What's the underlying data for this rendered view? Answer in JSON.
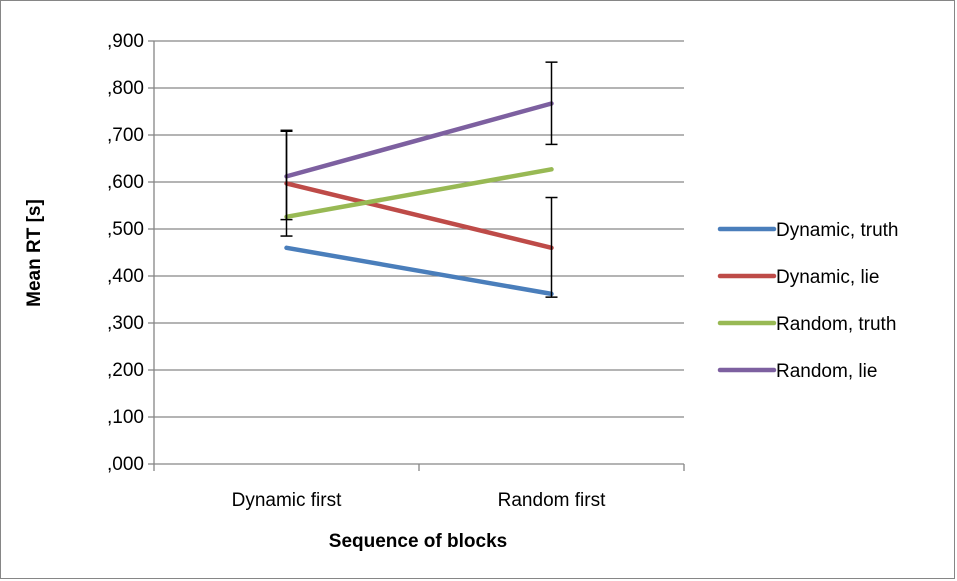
{
  "chart_data": {
    "type": "line",
    "title": "",
    "xlabel": "Sequence of blocks",
    "ylabel": "Mean RT [s]",
    "categories": [
      "Dynamic first",
      "Random first"
    ],
    "ylim": [
      0,
      0.9
    ],
    "yticks": [
      0,
      0.1,
      0.2,
      0.3,
      0.4,
      0.5,
      0.6,
      0.7,
      0.8,
      0.9
    ],
    "ytick_labels": [
      ",000",
      ",100",
      ",200",
      ",300",
      ",400",
      ",500",
      ",600",
      ",700",
      ",800",
      ",900"
    ],
    "grid": true,
    "legend_position": "right",
    "series": [
      {
        "name": "Dynamic, truth",
        "values": [
          0.46,
          0.362
        ],
        "color": "#4A7EBB"
      },
      {
        "name": "Dynamic, lie",
        "values": [
          0.597,
          0.46
        ],
        "color": "#BE4B48"
      },
      {
        "name": "Random, truth",
        "values": [
          0.526,
          0.627
        ],
        "color": "#98B954"
      },
      {
        "name": "Random, lie",
        "values": [
          0.612,
          0.767
        ],
        "color": "#7D60A0"
      }
    ],
    "error_bars": [
      {
        "category": "Dynamic first",
        "low": 0.485,
        "high": 0.708
      },
      {
        "category": "Dynamic first",
        "low": 0.52,
        "high": 0.71
      },
      {
        "category": "Random first",
        "low": 0.355,
        "high": 0.567
      },
      {
        "category": "Random first",
        "low": 0.68,
        "high": 0.855
      }
    ]
  }
}
